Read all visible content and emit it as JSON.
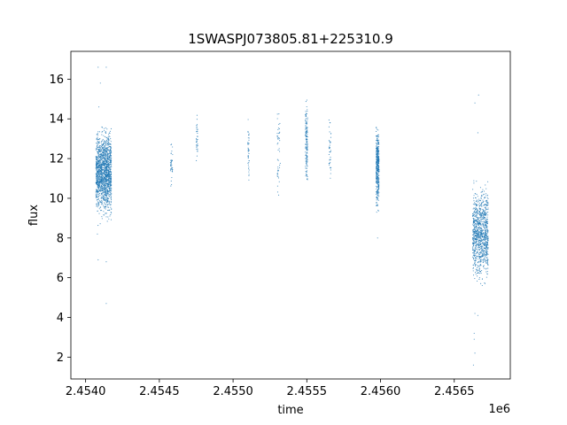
{
  "chart_data": {
    "type": "scatter",
    "title": "1SWASPJ073805.81+225310.9",
    "xlabel": "time",
    "ylabel": "flux",
    "x_offset_label": "1e6",
    "x_scale_factor": 1000000,
    "xlim": [
      2453900,
      2456880
    ],
    "ylim": [
      0.9,
      17.4
    ],
    "grid": false,
    "x_ticks": [
      2454000,
      2454500,
      2455000,
      2455500,
      2456000,
      2456500
    ],
    "x_tick_labels": [
      "2.4540",
      "2.4545",
      "2.4550",
      "2.4555",
      "2.4560",
      "2.4565"
    ],
    "y_ticks": [
      2,
      4,
      6,
      8,
      10,
      12,
      14,
      16
    ],
    "y_tick_labels": [
      "2",
      "4",
      "6",
      "8",
      "10",
      "12",
      "14",
      "16"
    ],
    "series": [
      {
        "color": "#1f77b4",
        "clusters": [
          {
            "x_start": 2454070,
            "x_end": 2454175,
            "y_min": 8.6,
            "y_max": 13.6,
            "y_center": 11.3,
            "count": 1500
          },
          {
            "x_start": 2454575,
            "x_end": 2454590,
            "y_min": 10.6,
            "y_max": 13.1,
            "y_center": 11.6,
            "count": 40
          },
          {
            "x_start": 2454750,
            "x_end": 2454760,
            "y_min": 11.4,
            "y_max": 14.2,
            "y_center": 13.0,
            "count": 35
          },
          {
            "x_start": 2455100,
            "x_end": 2455110,
            "y_min": 10.5,
            "y_max": 14.2,
            "y_center": 12.6,
            "count": 40
          },
          {
            "x_start": 2455300,
            "x_end": 2455320,
            "y_min": 9.9,
            "y_max": 15.6,
            "y_center": 12.3,
            "count": 45
          },
          {
            "x_start": 2455490,
            "x_end": 2455505,
            "y_min": 10.9,
            "y_max": 15.6,
            "y_center": 12.8,
            "count": 150
          },
          {
            "x_start": 2455650,
            "x_end": 2455665,
            "y_min": 10.6,
            "y_max": 14.6,
            "y_center": 12.4,
            "count": 40
          },
          {
            "x_start": 2455970,
            "x_end": 2455990,
            "y_min": 9.2,
            "y_max": 14.1,
            "y_center": 11.6,
            "count": 400
          },
          {
            "x_start": 2456625,
            "x_end": 2456730,
            "y_min": 5.3,
            "y_max": 11.0,
            "y_center": 8.2,
            "count": 1000
          }
        ],
        "outliers": [
          {
            "x": 2454085,
            "y": 16.6
          },
          {
            "x": 2454140,
            "y": 16.6
          },
          {
            "x": 2454100,
            "y": 15.8
          },
          {
            "x": 2454090,
            "y": 14.6
          },
          {
            "x": 2454085,
            "y": 6.9
          },
          {
            "x": 2454140,
            "y": 6.8
          },
          {
            "x": 2454140,
            "y": 4.7
          },
          {
            "x": 2454080,
            "y": 8.2
          },
          {
            "x": 2455980,
            "y": 8.0
          },
          {
            "x": 2456640,
            "y": 14.8
          },
          {
            "x": 2456665,
            "y": 15.2
          },
          {
            "x": 2456660,
            "y": 13.3
          },
          {
            "x": 2456640,
            "y": 4.2
          },
          {
            "x": 2456660,
            "y": 4.1
          },
          {
            "x": 2456635,
            "y": 3.2
          },
          {
            "x": 2456635,
            "y": 2.9
          },
          {
            "x": 2456640,
            "y": 2.2
          },
          {
            "x": 2456630,
            "y": 1.6
          }
        ]
      }
    ]
  }
}
